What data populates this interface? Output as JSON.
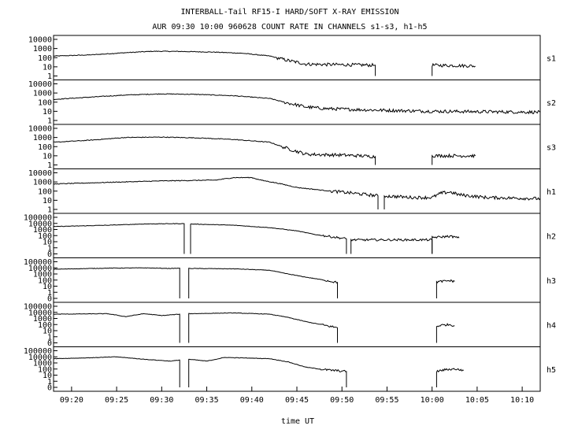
{
  "chart_data": {
    "type": "line",
    "title": "INTERBALL-Tail RF15-I HARD/SOFT X-RAY EMISSION",
    "subtitle": "AUR 09:30 10:00 960628  COUNT RATE IN CHANNELS s1-s3, h1-h5",
    "xlabel": "time UT",
    "x_ticks": [
      "09:20",
      "09:25",
      "09:30",
      "09:35",
      "09:40",
      "09:45",
      "09:50",
      "09:55",
      "10:00",
      "10:05",
      "10:10"
    ],
    "xlim": [
      "09:18",
      "10:12"
    ],
    "y_scale": "log",
    "grid": false,
    "legend": "none",
    "panels": [
      {
        "channel": "s1",
        "y_ticks": [
          "10000",
          "1000",
          "100",
          "10",
          "1"
        ],
        "ylim": [
          1,
          10000
        ],
        "series": [
          {
            "times": [
              "09:18",
              "09:22",
              "09:26",
              "09:29",
              "09:32",
              "09:36",
              "09:39",
              "09:42",
              "09:44",
              "09:46",
              "09:48",
              "09:50",
              "09:52",
              "09:53.7"
            ],
            "values": [
              150,
              200,
              350,
              500,
              480,
              400,
              300,
              150,
              50,
              20,
              18,
              17,
              16,
              15
            ]
          },
          {
            "times": [
              "10:00",
              "10:02",
              "10:04",
              "10:04.8"
            ],
            "values": [
              15,
              14,
              13,
              12
            ]
          }
        ]
      },
      {
        "channel": "s2",
        "y_ticks": [
          "10000",
          "1000",
          "100",
          "10",
          "1"
        ],
        "ylim": [
          1,
          10000
        ],
        "series": [
          {
            "times": [
              "09:18",
              "09:22",
              "09:26",
              "09:30",
              "09:34",
              "09:38",
              "09:42",
              "09:44",
              "09:46",
              "09:48",
              "09:52",
              "09:56",
              "10:00",
              "10:06",
              "10:12"
            ],
            "values": [
              200,
              350,
              600,
              800,
              700,
              500,
              250,
              80,
              30,
              20,
              15,
              12,
              10,
              9,
              8
            ]
          }
        ]
      },
      {
        "channel": "s3",
        "y_ticks": [
          "10000",
          "1000",
          "100",
          "10",
          "1"
        ],
        "ylim": [
          1,
          10000
        ],
        "series": [
          {
            "times": [
              "09:18",
              "09:22",
              "09:26",
              "09:30",
              "09:34",
              "09:38",
              "09:42",
              "09:44",
              "09:46",
              "09:48",
              "09:50",
              "09:52",
              "09:53.7"
            ],
            "values": [
              300,
              500,
              1000,
              1100,
              900,
              600,
              300,
              60,
              15,
              13,
              12,
              10,
              8
            ]
          },
          {
            "times": [
              "10:00",
              "10:02",
              "10:04",
              "10:04.8"
            ],
            "values": [
              10,
              10,
              10,
              10
            ]
          }
        ]
      },
      {
        "channel": "h1",
        "y_ticks": [
          "10000",
          "1000",
          "100",
          "10",
          "1"
        ],
        "ylim": [
          1,
          10000
        ],
        "series": [
          {
            "times": [
              "09:18",
              "09:24",
              "09:30",
              "09:36",
              "09:38",
              "09:40",
              "09:41",
              "09:43",
              "09:45",
              "09:48",
              "09:52",
              "09:54"
            ],
            "values": [
              600,
              900,
              1300,
              1600,
              3000,
              3000,
              1600,
              700,
              250,
              120,
              50,
              30
            ]
          },
          {
            "times": [
              "09:54.7",
              "09:58",
              "10:00",
              "10:01",
              "10:02",
              "10:03",
              "10:06",
              "10:12"
            ],
            "values": [
              30,
              20,
              20,
              60,
              80,
              40,
              20,
              15
            ]
          }
        ]
      },
      {
        "channel": "h2",
        "y_ticks": [
          "100000",
          "10000",
          "1000",
          "100",
          "10",
          "1",
          "0"
        ],
        "ylim": [
          0,
          100000
        ],
        "series": [
          {
            "times": [
              "09:18",
              "09:24",
              "09:28",
              "09:31",
              "09:32.5"
            ],
            "values": [
              3000,
              5000,
              8000,
              9000,
              9000
            ]
          },
          {
            "times": [
              "09:33.2",
              "09:38",
              "09:42",
              "09:45",
              "09:47",
              "09:49",
              "09:50.5"
            ],
            "values": [
              8000,
              5000,
              2000,
              600,
              150,
              60,
              30
            ]
          },
          {
            "times": [
              "09:51",
              "10:00"
            ],
            "values": [
              20,
              20
            ]
          },
          {
            "times": [
              "10:00",
              "10:01",
              "10:02",
              "10:03"
            ],
            "values": [
              50,
              60,
              80,
              40
            ]
          }
        ]
      },
      {
        "channel": "h3",
        "y_ticks": [
          "100000",
          "10000",
          "1000",
          "100",
          "10",
          "1",
          "0"
        ],
        "ylim": [
          0,
          100000
        ],
        "series": [
          {
            "times": [
              "09:18",
              "09:24",
              "09:28",
              "09:31",
              "09:32"
            ],
            "values": [
              6000,
              9000,
              10000,
              8000,
              9000
            ]
          },
          {
            "times": [
              "09:33",
              "09:38",
              "09:42",
              "09:44",
              "09:46",
              "09:48",
              "09:49.5"
            ],
            "values": [
              8000,
              7000,
              4000,
              1000,
              300,
              100,
              40
            ]
          },
          {
            "times": [
              "10:00.5",
              "10:01",
              "10:02",
              "10:02.5"
            ],
            "values": [
              50,
              60,
              80,
              60
            ]
          }
        ]
      },
      {
        "channel": "h4",
        "y_ticks": [
          "100000",
          "10000",
          "1000",
          "100",
          "10",
          "1",
          "0"
        ],
        "ylim": [
          0,
          100000
        ],
        "series": [
          {
            "times": [
              "09:18",
              "09:24",
              "09:26",
              "09:28",
              "09:30",
              "09:32"
            ],
            "values": [
              5000,
              6000,
              2000,
              6000,
              3000,
              5000
            ]
          },
          {
            "times": [
              "09:33",
              "09:38",
              "09:42",
              "09:44",
              "09:46",
              "09:48",
              "09:49.5"
            ],
            "values": [
              6000,
              8000,
              5000,
              1500,
              300,
              80,
              30
            ]
          },
          {
            "times": [
              "10:00.5",
              "10:01",
              "10:02",
              "10:02.5"
            ],
            "values": [
              50,
              80,
              100,
              60
            ]
          }
        ]
      },
      {
        "channel": "h5",
        "y_ticks": [
          "100000",
          "10000",
          "1000",
          "100",
          "10",
          "1",
          "0"
        ],
        "ylim": [
          0,
          100000
        ],
        "series": [
          {
            "times": [
              "09:18",
              "09:22",
              "09:25",
              "09:28",
              "09:31",
              "09:32"
            ],
            "values": [
              5000,
              7000,
              10000,
              4000,
              2000,
              3000
            ]
          },
          {
            "times": [
              "09:33",
              "09:35",
              "09:37",
              "09:42",
              "09:44",
              "09:46",
              "09:48",
              "09:50.5"
            ],
            "values": [
              4000,
              2000,
              8000,
              5000,
              1500,
              200,
              80,
              40
            ]
          },
          {
            "times": [
              "10:00.5",
              "10:01.5",
              "10:02.5",
              "10:03.5"
            ],
            "values": [
              40,
              80,
              100,
              60
            ]
          }
        ]
      }
    ]
  }
}
